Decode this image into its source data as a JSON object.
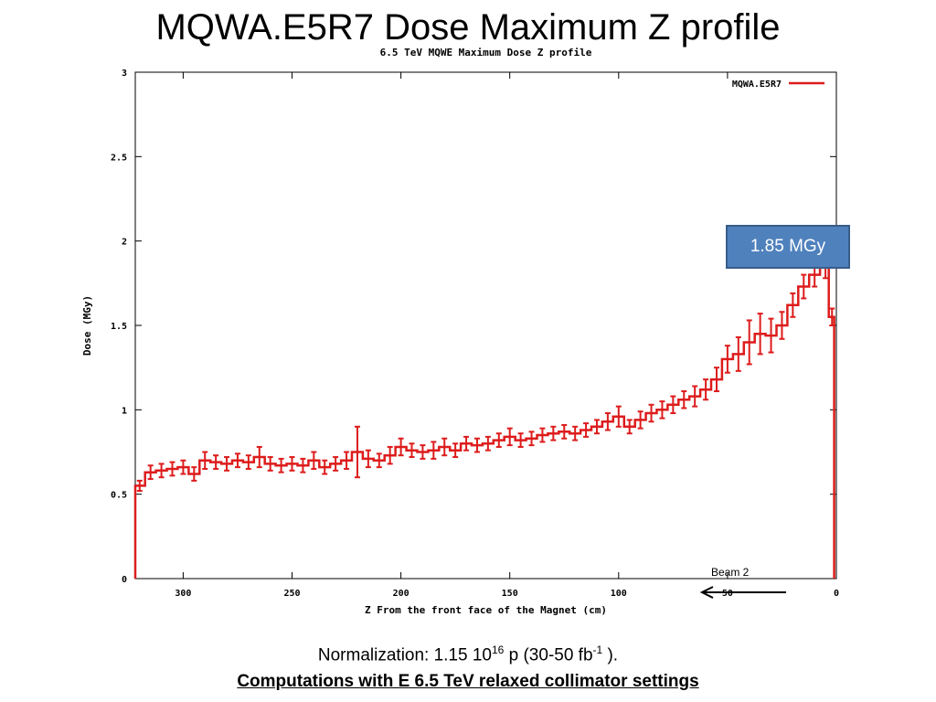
{
  "slide": {
    "title": "MQWA.E5R7 Dose Maximum Z profile",
    "callout": "1.85 MGy",
    "beam_label": "Beam 2",
    "normalization": {
      "prefix": "Normalization: 1.15  10",
      "exp1": "16",
      "middle": " p (30-50 fb",
      "exp2": "-1",
      "suffix": " )."
    },
    "computations": "Computations with E 6.5 TeV relaxed collimator settings"
  },
  "colors": {
    "series": "#dd1c1c",
    "callout_fill": "#4f81bd",
    "callout_border": "#385d8a"
  },
  "chart_data": {
    "type": "line",
    "style": "step with error bars",
    "title": "6.5 TeV MQWE Maximum Dose Z profile",
    "xlabel": "Z From the front face of the Magnet (cm)",
    "ylabel": "Dose (MGy)",
    "xlim": [
      322,
      0
    ],
    "ylim": [
      0,
      3
    ],
    "x_reversed": true,
    "xticks": [
      "300",
      "250",
      "200",
      "150",
      "100",
      "50",
      "0"
    ],
    "yticks": [
      "0",
      "0.5",
      "1",
      "1.5",
      "2",
      "2.5",
      "3"
    ],
    "legend": {
      "position": "top-right",
      "entries": [
        "MQWA.E5R7"
      ]
    },
    "series": [
      {
        "name": "MQWA.E5R7",
        "x": [
          320,
          315,
          310,
          305,
          300,
          295,
          290,
          285,
          280,
          275,
          270,
          265,
          260,
          255,
          250,
          245,
          240,
          235,
          230,
          225,
          220,
          215,
          210,
          205,
          200,
          195,
          190,
          185,
          180,
          175,
          170,
          165,
          160,
          155,
          150,
          145,
          140,
          135,
          130,
          125,
          120,
          115,
          110,
          105,
          100,
          95,
          90,
          85,
          80,
          75,
          70,
          65,
          60,
          55,
          50,
          45,
          40,
          35,
          30,
          25,
          20,
          15,
          10,
          5,
          2
        ],
        "y": [
          0.55,
          0.63,
          0.64,
          0.65,
          0.66,
          0.62,
          0.7,
          0.69,
          0.68,
          0.7,
          0.69,
          0.72,
          0.68,
          0.67,
          0.68,
          0.67,
          0.7,
          0.66,
          0.68,
          0.7,
          0.75,
          0.71,
          0.7,
          0.73,
          0.78,
          0.76,
          0.75,
          0.76,
          0.78,
          0.76,
          0.8,
          0.79,
          0.8,
          0.82,
          0.84,
          0.82,
          0.83,
          0.85,
          0.86,
          0.87,
          0.86,
          0.88,
          0.9,
          0.93,
          0.96,
          0.9,
          0.94,
          0.98,
          1.0,
          1.03,
          1.06,
          1.08,
          1.12,
          1.18,
          1.3,
          1.33,
          1.4,
          1.45,
          1.44,
          1.5,
          1.62,
          1.73,
          1.8,
          1.85,
          1.55
        ],
        "err": [
          0.03,
          0.04,
          0.04,
          0.04,
          0.04,
          0.04,
          0.05,
          0.04,
          0.04,
          0.04,
          0.04,
          0.06,
          0.04,
          0.04,
          0.04,
          0.04,
          0.05,
          0.04,
          0.04,
          0.05,
          0.15,
          0.05,
          0.04,
          0.05,
          0.05,
          0.04,
          0.04,
          0.05,
          0.05,
          0.04,
          0.04,
          0.04,
          0.04,
          0.04,
          0.05,
          0.04,
          0.04,
          0.04,
          0.04,
          0.04,
          0.04,
          0.04,
          0.04,
          0.05,
          0.06,
          0.04,
          0.05,
          0.05,
          0.05,
          0.05,
          0.05,
          0.06,
          0.06,
          0.07,
          0.08,
          0.1,
          0.13,
          0.12,
          0.1,
          0.08,
          0.07,
          0.07,
          0.07,
          0.07,
          0.05
        ]
      }
    ]
  }
}
